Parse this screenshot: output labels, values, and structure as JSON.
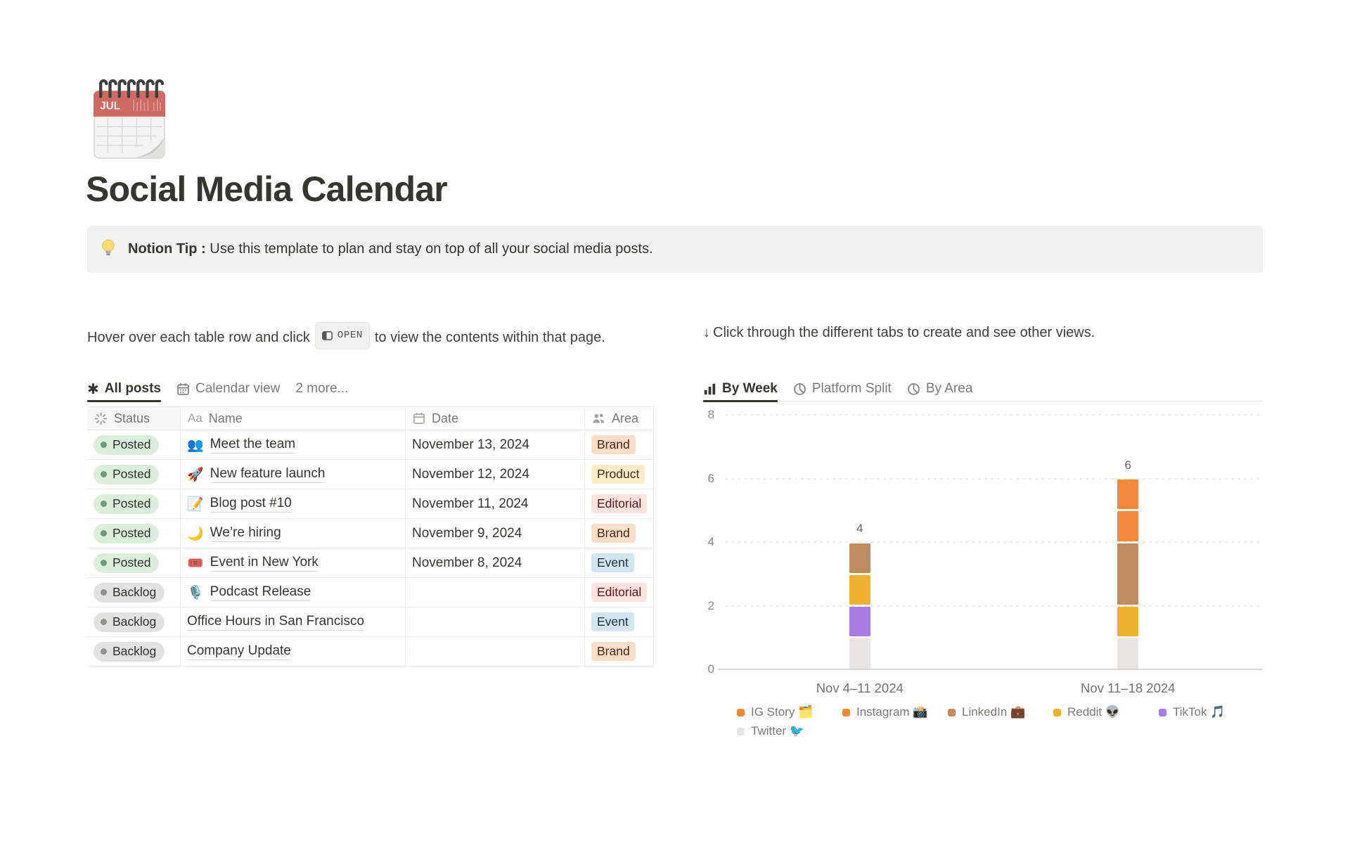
{
  "page": {
    "title": "Social Media Calendar",
    "icon": "spiral-calendar",
    "icon_month": "JUL"
  },
  "callout": {
    "icon": "lightbulb",
    "bold": "Notion Tip :",
    "text": "Use this template to plan and stay on top of all your social media posts."
  },
  "left": {
    "intro_before": "Hover over each table row and click",
    "open_button": "OPEN",
    "intro_after": "to view the contents within that page.",
    "tabs": [
      {
        "label": "All posts",
        "icon": "asterisk-icon",
        "active": true
      },
      {
        "label": "Calendar view",
        "icon": "calendar-icon",
        "active": false
      },
      {
        "label": "2 more...",
        "icon": "",
        "active": false
      }
    ],
    "table": {
      "columns": [
        {
          "label": "Status",
          "icon": "status-spinner-icon"
        },
        {
          "label": "Name",
          "icon": "Aa"
        },
        {
          "label": "Date",
          "icon": "calendar-icon"
        },
        {
          "label": "Area",
          "icon": "people-icon"
        }
      ],
      "rows": [
        {
          "status": "Posted",
          "status_color": "green",
          "icon": "👥",
          "name": "Meet the team",
          "date": "November 13, 2024",
          "area": "Brand",
          "area_color": "orange"
        },
        {
          "status": "Posted",
          "status_color": "green",
          "icon": "🚀",
          "name": "New feature launch",
          "date": "November 12, 2024",
          "area": "Product",
          "area_color": "yellow"
        },
        {
          "status": "Posted",
          "status_color": "green",
          "icon": "📝",
          "name": "Blog post #10",
          "date": "November 11, 2024",
          "area": "Editorial",
          "area_color": "red"
        },
        {
          "status": "Posted",
          "status_color": "green",
          "icon": "🌙",
          "name": "We’re hiring",
          "date": "November 9, 2024",
          "area": "Brand",
          "area_color": "orange"
        },
        {
          "status": "Posted",
          "status_color": "green",
          "icon": "🎟️",
          "name": "Event in New York",
          "date": "November 8, 2024",
          "area": "Event",
          "area_color": "blue"
        },
        {
          "status": "Backlog",
          "status_color": "gray",
          "icon": "🎙️",
          "name": "Podcast Release",
          "date": "",
          "area": "Editorial",
          "area_color": "red"
        },
        {
          "status": "Backlog",
          "status_color": "gray",
          "icon": "",
          "name": "Office Hours in San Francisco",
          "date": "",
          "area": "Event",
          "area_color": "blue"
        },
        {
          "status": "Backlog",
          "status_color": "gray",
          "icon": "",
          "name": "Company Update",
          "date": "",
          "area": "Brand",
          "area_color": "orange"
        }
      ]
    }
  },
  "right": {
    "arrow": "↓",
    "intro": "Click through the different tabs to create and see other views.",
    "tabs": [
      {
        "label": "By Week",
        "icon": "bar-chart-icon",
        "active": true
      },
      {
        "label": "Platform Split",
        "icon": "pie-chart-icon",
        "active": false
      },
      {
        "label": "By Area",
        "icon": "pie-chart-icon",
        "active": false
      }
    ]
  },
  "chart_data": {
    "type": "bar",
    "stacked": true,
    "title": "",
    "xlabel": "",
    "ylabel": "",
    "categories": [
      "Nov 4–11 2024",
      "Nov 11–18 2024"
    ],
    "series": [
      {
        "name": "IG Story 🗂️",
        "color": "#ef8b38",
        "values": [
          0,
          1
        ]
      },
      {
        "name": "Instagram 📸",
        "color": "#ef8b38",
        "values": [
          0,
          1
        ]
      },
      {
        "name": "LinkedIn 💼",
        "color": "#bf8b60",
        "values": [
          1,
          2
        ]
      },
      {
        "name": "Reddit 👽",
        "color": "#eeb232",
        "values": [
          1,
          1
        ]
      },
      {
        "name": "TikTok 🎵",
        "color": "#a87de2",
        "values": [
          1,
          0
        ]
      },
      {
        "name": "Twitter 🐦",
        "color": "#e7e4e2",
        "values": [
          1,
          1
        ]
      }
    ],
    "stack_order_bottom_to_top": [
      "Twitter 🐦",
      "TikTok 🎵",
      "Reddit 👽",
      "LinkedIn 💼",
      "Instagram 📸",
      "IG Story 🗂️"
    ],
    "totals": [
      4,
      6
    ],
    "ylim": [
      0,
      8
    ],
    "yticks": [
      0,
      2,
      4,
      6,
      8
    ],
    "grid": "dotted-horizontal",
    "legend_position": "bottom"
  }
}
